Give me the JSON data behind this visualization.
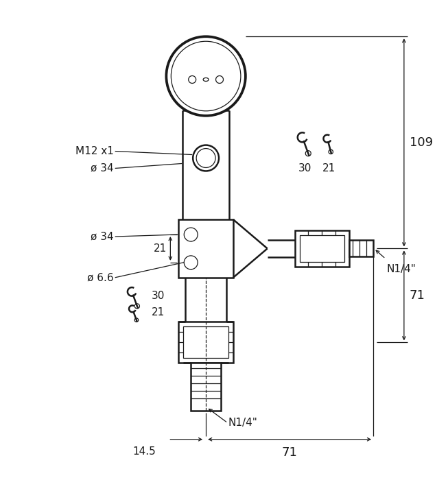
{
  "bg_color": "#ffffff",
  "line_color": "#1a1a1a",
  "lw_main": 1.8,
  "lw_thin": 0.9,
  "lw_dim": 0.9,
  "fig_width": 6.53,
  "fig_height": 7.0,
  "labels": {
    "M12x1": "M12 x1",
    "d34_top": "ø 34",
    "d34_mid": "ø 34",
    "d21": "21",
    "d6_6": "ø 6.6",
    "w30_top": "30",
    "w21_top": "21",
    "w30_bot": "30",
    "w21_bot": "21",
    "N14_right": "N1/4\"",
    "N14_bot": "N1/4\"",
    "dim_109": "109",
    "dim_71_r": "71",
    "dim_71_b": "71",
    "dim_14_5": "14.5"
  }
}
